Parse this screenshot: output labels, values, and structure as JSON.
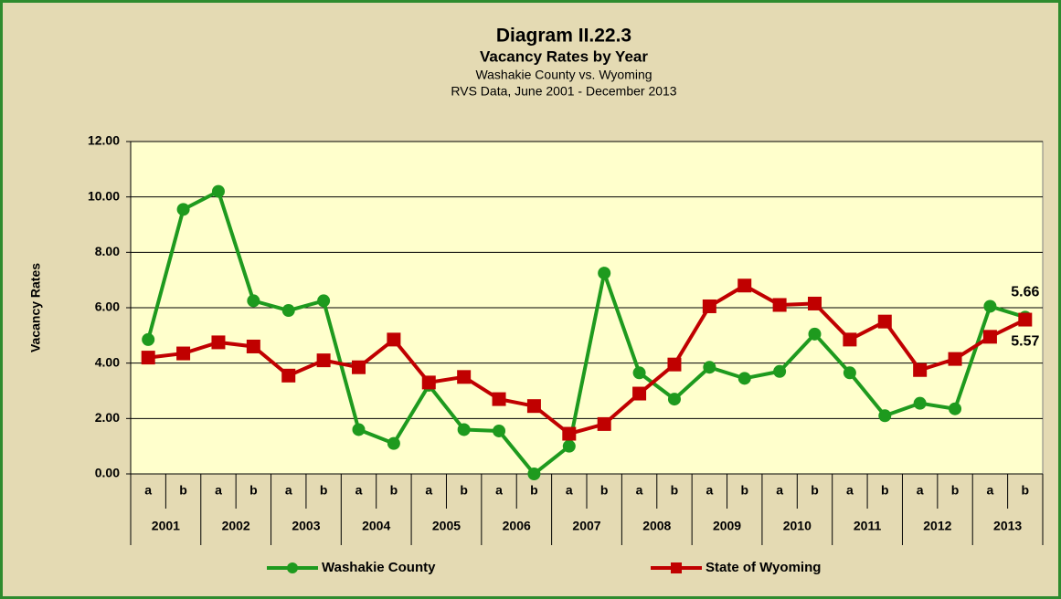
{
  "chart_data": {
    "type": "line",
    "title": "Diagram II.22.3",
    "subtitle": "Vacancy Rates by Year",
    "subtitle2": "Washakie County vs. Wyoming",
    "subtitle3": "RVS Data, June 2001 - December 2013",
    "ylabel": "Vacancy Rates",
    "categories": [
      "a",
      "b",
      "a",
      "b",
      "a",
      "b",
      "a",
      "b",
      "a",
      "b",
      "a",
      "b",
      "a",
      "b",
      "a",
      "b",
      "a",
      "b",
      "a",
      "b",
      "a",
      "b",
      "a",
      "b",
      "a",
      "b"
    ],
    "groups": [
      "2001",
      "2002",
      "2003",
      "2004",
      "2005",
      "2006",
      "2007",
      "2008",
      "2009",
      "2010",
      "2011",
      "2012",
      "2013"
    ],
    "series": [
      {
        "name": "Washakie County",
        "color": "#1e9a1e",
        "marker": "circle",
        "values": [
          4.85,
          9.55,
          10.2,
          6.25,
          5.9,
          6.25,
          1.6,
          1.1,
          3.2,
          1.6,
          1.55,
          0.0,
          1.0,
          7.25,
          3.65,
          2.7,
          3.85,
          3.45,
          3.7,
          5.05,
          3.65,
          2.1,
          2.55,
          2.35,
          6.05,
          5.66
        ]
      },
      {
        "name": "State of Wyoming",
        "color": "#c00000",
        "marker": "square",
        "values": [
          4.2,
          4.35,
          4.75,
          4.6,
          3.55,
          4.1,
          3.85,
          4.85,
          3.3,
          3.5,
          2.7,
          2.45,
          1.45,
          1.8,
          2.9,
          3.95,
          6.05,
          6.8,
          6.1,
          6.15,
          4.85,
          5.5,
          3.75,
          4.15,
          4.95,
          5.57
        ]
      }
    ],
    "ylim": [
      0,
      12
    ],
    "yticks": [
      {
        "value": 0,
        "label": "0.00"
      },
      {
        "value": 2,
        "label": "2.00"
      },
      {
        "value": 4,
        "label": "4.00"
      },
      {
        "value": 6,
        "label": "6.00"
      },
      {
        "value": 8,
        "label": "8.00"
      },
      {
        "value": 10,
        "label": "10.00"
      },
      {
        "value": 12,
        "label": "12.00"
      }
    ],
    "grid": true,
    "legend": "bottom"
  }
}
